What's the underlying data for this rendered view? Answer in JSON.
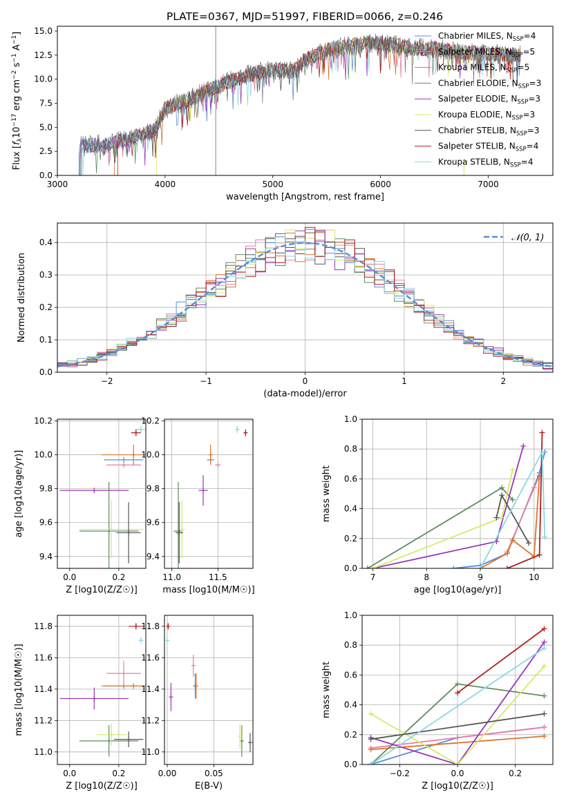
{
  "title": "PLATE=0367, MJD=51997, FIBERID=0066, z=0.246",
  "colors": [
    "#5b8bd6",
    "#e87ca8",
    "#d9742b",
    "#5e8a5e",
    "#9a35b5",
    "#d3ea6a",
    "#555555",
    "#b01c1c",
    "#8ad8e0"
  ],
  "legend": [
    {
      "label": "Chabrier MILES, N",
      "sub": "SSP",
      "tail": "=4"
    },
    {
      "label": "Salpeter MILES, N",
      "sub": "SSP",
      "tail": "=5"
    },
    {
      "label": "Kroupa MILES, N",
      "sub": "SSP",
      "tail": "=5"
    },
    {
      "label": "Chabrier ELODIE, N",
      "sub": "SSP",
      "tail": "=3"
    },
    {
      "label": "Salpeter ELODIE, N",
      "sub": "SSP",
      "tail": "=3"
    },
    {
      "label": "Kroupa ELODIE, N",
      "sub": "SSP",
      "tail": "=3"
    },
    {
      "label": "Chabrier STELIB, N",
      "sub": "SSP",
      "tail": "=3"
    },
    {
      "label": "Salpeter STELIB, N",
      "sub": "SSP",
      "tail": "=4"
    },
    {
      "label": "Kroupa STELIB, N",
      "sub": "SSP",
      "tail": "=4"
    }
  ],
  "chart_data": [
    {
      "id": "spectrum",
      "type": "line",
      "xlabel": "wavelength [Angstrom, rest frame]",
      "ylabel": "Flux [f_λ 10^-17 erg cm^-2 s^-1 A^-1]",
      "xlim": [
        3000,
        7600
      ],
      "ylim": [
        0,
        15.5
      ],
      "xticks": [
        3000,
        4000,
        5000,
        6000,
        7000
      ],
      "yticks": [
        0.0,
        2.5,
        5.0,
        7.5,
        10.0,
        12.5,
        15.0
      ],
      "data_envelope": {
        "x": [
          3200,
          3300,
          3500,
          3700,
          3900,
          4000,
          4200,
          4400,
          4600,
          4800,
          5000,
          5200,
          5300,
          5500,
          5700,
          5900,
          6100,
          6300,
          6500,
          6700,
          6900,
          7100,
          7300
        ],
        "y": [
          3.0,
          3.1,
          3.3,
          4.0,
          4.6,
          7.0,
          7.8,
          8.8,
          9.8,
          10.5,
          11.0,
          10.8,
          12.0,
          13.0,
          13.4,
          13.8,
          13.6,
          13.2,
          13.2,
          12.8,
          12.7,
          12.6,
          12.5
        ]
      },
      "grid": false,
      "legend_placement": "top-right"
    },
    {
      "id": "residuals",
      "type": "histogram",
      "xlabel": "(data-model)/error",
      "ylabel": "Normed distribution",
      "xlim": [
        -2.5,
        2.5
      ],
      "ylim": [
        0,
        0.46
      ],
      "xticks": [
        -2,
        -1,
        0,
        1,
        2
      ],
      "yticks": [
        0.0,
        0.1,
        0.2,
        0.3,
        0.4
      ],
      "reference_curve": "N(0,1)",
      "legend_label": "𝒩(0, 1)",
      "grid": true,
      "legend_placement": "top-right"
    },
    {
      "id": "age_vs_Z",
      "type": "errorbar",
      "xlabel": "Z [log10(Z/Z☉)]",
      "ylabel": "age  [log10(age/yr)]",
      "xlim": [
        -0.05,
        0.31
      ],
      "ylim": [
        9.33,
        10.21
      ],
      "xticks": [
        0.0,
        0.2
      ],
      "yticks": [
        9.4,
        9.6,
        9.8,
        10.0,
        10.2
      ],
      "points": [
        {
          "x": 0.22,
          "y": 9.97,
          "xerr": 0.08,
          "yerr": 0.0,
          "c": 0
        },
        {
          "x": 0.22,
          "y": 9.94,
          "xerr": 0.07,
          "yerr": 0.0,
          "c": 1
        },
        {
          "x": 0.26,
          "y": 10.0,
          "xerr": 0.13,
          "yerr": 0.06,
          "c": 2
        },
        {
          "x": 0.16,
          "y": 9.55,
          "xerr": 0.12,
          "yerr": 0.29,
          "c": 3
        },
        {
          "x": 0.1,
          "y": 9.79,
          "xerr": 0.14,
          "yerr": 0.0,
          "c": 4
        },
        {
          "x": 0.17,
          "y": 9.56,
          "xerr": 0.13,
          "yerr": 0.17,
          "c": 5
        },
        {
          "x": 0.24,
          "y": 9.54,
          "xerr": 0.05,
          "yerr": 0.18,
          "c": 6
        },
        {
          "x": 0.27,
          "y": 10.13,
          "xerr": 0.02,
          "yerr": 0.02,
          "c": 7
        },
        {
          "x": 0.29,
          "y": 10.15,
          "xerr": 0.02,
          "yerr": 0.02,
          "c": 8
        }
      ]
    },
    {
      "id": "age_vs_mass",
      "type": "errorbar",
      "xlabel": "mass [log10(M/M☉)]",
      "ylabel": "",
      "xlim": [
        10.92,
        11.88
      ],
      "ylim": [
        9.33,
        10.21
      ],
      "xticks": [
        11.0,
        11.5
      ],
      "yticks": [
        9.4,
        9.6,
        9.8,
        10.0,
        10.2
      ],
      "points": [
        {
          "x": 11.42,
          "y": 9.97,
          "xerr": 0.04,
          "yerr": 0.0,
          "c": 0
        },
        {
          "x": 11.5,
          "y": 9.94,
          "xerr": 0.03,
          "yerr": 0.0,
          "c": 1
        },
        {
          "x": 11.42,
          "y": 10.0,
          "xerr": 0.0,
          "yerr": 0.06,
          "c": 2
        },
        {
          "x": 11.07,
          "y": 9.55,
          "xerr": 0.05,
          "yerr": 0.29,
          "c": 3
        },
        {
          "x": 11.34,
          "y": 9.79,
          "xerr": 0.05,
          "yerr": 0.09,
          "c": 4
        },
        {
          "x": 11.11,
          "y": 9.56,
          "xerr": 0.04,
          "yerr": 0.17,
          "c": 5
        },
        {
          "x": 11.08,
          "y": 9.54,
          "xerr": 0.04,
          "yerr": 0.18,
          "c": 6
        },
        {
          "x": 11.8,
          "y": 10.13,
          "xerr": 0.02,
          "yerr": 0.02,
          "c": 7
        },
        {
          "x": 11.71,
          "y": 10.15,
          "xerr": 0.02,
          "yerr": 0.02,
          "c": 8
        }
      ]
    },
    {
      "id": "massweight_vs_age",
      "type": "line",
      "xlabel": "age  [log10(age/yr)]",
      "ylabel": "mass weight",
      "xlim": [
        6.8,
        10.35
      ],
      "ylim": [
        0,
        1.0
      ],
      "xticks": [
        7,
        8,
        9,
        10
      ],
      "yticks": [
        0.0,
        0.2,
        0.4,
        0.6,
        0.8,
        1.0
      ],
      "series": [
        {
          "c": 0,
          "x": [
            8.5,
            9.0,
            9.5,
            10.1,
            10.2
          ],
          "y": [
            0.0,
            0.02,
            0.1,
            0.64,
            0.78
          ]
        },
        {
          "c": 1,
          "x": [
            9.5,
            10.0,
            10.1
          ],
          "y": [
            0.11,
            0.54,
            0.62
          ]
        },
        {
          "c": 2,
          "x": [
            9.0,
            9.5,
            9.6,
            10.0,
            10.1
          ],
          "y": [
            0.0,
            0.1,
            0.19,
            0.08,
            0.62
          ]
        },
        {
          "c": 3,
          "x": [
            6.9,
            9.4,
            9.6
          ],
          "y": [
            0.0,
            0.54,
            0.46
          ]
        },
        {
          "c": 4,
          "x": [
            7.0,
            9.3,
            9.8
          ],
          "y": [
            0.0,
            0.18,
            0.82
          ]
        },
        {
          "c": 5,
          "x": [
            7.0,
            9.4,
            9.6
          ],
          "y": [
            0.0,
            0.34,
            0.66
          ]
        },
        {
          "c": 6,
          "x": [
            9.3,
            9.4,
            9.9
          ],
          "y": [
            0.34,
            0.49,
            0.17
          ]
        },
        {
          "c": 7,
          "x": [
            9.5,
            10.1,
            10.15
          ],
          "y": [
            0.0,
            0.09,
            0.91
          ]
        },
        {
          "c": 8,
          "x": [
            9.0,
            10.15,
            10.2
          ],
          "y": [
            0.0,
            0.78,
            0.21
          ]
        }
      ]
    },
    {
      "id": "mass_vs_Z",
      "type": "errorbar",
      "xlabel": "Z [log10(Z/Z☉)]",
      "ylabel": "mass [log10(M/M☉)]",
      "xlim": [
        -0.05,
        0.31
      ],
      "ylim": [
        10.92,
        11.87
      ],
      "xticks": [
        0.0,
        0.2
      ],
      "yticks": [
        11.0,
        11.2,
        11.4,
        11.6,
        11.8
      ],
      "points": [
        {
          "x": 0.22,
          "y": 11.42,
          "xerr": 0.08,
          "yerr": 0.0,
          "c": 0
        },
        {
          "x": 0.22,
          "y": 11.5,
          "xerr": 0.07,
          "yerr": 0.08,
          "c": 1
        },
        {
          "x": 0.26,
          "y": 11.42,
          "xerr": 0.13,
          "yerr": 0.0,
          "c": 2
        },
        {
          "x": 0.16,
          "y": 11.07,
          "xerr": 0.12,
          "yerr": 0.1,
          "c": 3
        },
        {
          "x": 0.1,
          "y": 11.34,
          "xerr": 0.14,
          "yerr": 0.07,
          "c": 4
        },
        {
          "x": 0.17,
          "y": 11.11,
          "xerr": 0.06,
          "yerr": 0.07,
          "c": 5
        },
        {
          "x": 0.24,
          "y": 11.08,
          "xerr": 0.06,
          "yerr": 0.05,
          "c": 6
        },
        {
          "x": 0.27,
          "y": 11.8,
          "xerr": 0.03,
          "yerr": 0.02,
          "c": 7
        },
        {
          "x": 0.29,
          "y": 11.71,
          "xerr": 0.01,
          "yerr": 0.02,
          "c": 8
        }
      ]
    },
    {
      "id": "mass_vs_EBV",
      "type": "errorbar",
      "xlabel": "E(B-V)",
      "ylabel": "",
      "xlim": [
        -0.003,
        0.092
      ],
      "ylim": [
        10.92,
        11.87
      ],
      "xticks": [
        0.0,
        0.05
      ],
      "yticks": [
        11.0,
        11.2,
        11.4,
        11.6,
        11.8
      ],
      "points": [
        {
          "x": 0.03,
          "y": 11.42,
          "xerr": 0.0,
          "yerr": 0.08,
          "c": 0
        },
        {
          "x": 0.028,
          "y": 11.55,
          "xerr": 0.0,
          "yerr": 0.07,
          "c": 1
        },
        {
          "x": 0.031,
          "y": 11.42,
          "xerr": 0.0,
          "yerr": 0.08,
          "c": 2
        },
        {
          "x": 0.08,
          "y": 11.07,
          "xerr": 0.0,
          "yerr": 0.1,
          "c": 3
        },
        {
          "x": 0.004,
          "y": 11.35,
          "xerr": 0.0,
          "yerr": 0.09,
          "c": 4
        },
        {
          "x": 0.078,
          "y": 11.1,
          "xerr": 0.0,
          "yerr": 0.08,
          "c": 5
        },
        {
          "x": 0.089,
          "y": 11.06,
          "xerr": 0.0,
          "yerr": 0.06,
          "c": 6
        },
        {
          "x": 0.001,
          "y": 11.8,
          "xerr": 0.0,
          "yerr": 0.02,
          "c": 7
        },
        {
          "x": 0.0,
          "y": 11.71,
          "xerr": 0.0,
          "yerr": 0.01,
          "c": 8
        }
      ]
    },
    {
      "id": "massweight_vs_Z",
      "type": "line",
      "xlabel": "Z [log10(Z/Z☉)]",
      "ylabel": "mass weight",
      "xlim": [
        -0.33,
        0.33
      ],
      "ylim": [
        0,
        1.0
      ],
      "xticks": [
        -0.2,
        0.0,
        0.2
      ],
      "yticks": [
        0.0,
        0.2,
        0.4,
        0.6,
        0.8,
        1.0
      ],
      "series": [
        {
          "c": 0,
          "x": [
            -0.3,
            0.0,
            0.3
          ],
          "y": [
            0.0,
            0.18,
            0.25
          ]
        },
        {
          "c": 1,
          "x": [
            -0.3,
            0.3
          ],
          "y": [
            0.11,
            0.25
          ]
        },
        {
          "c": 2,
          "x": [
            -0.3,
            0.3
          ],
          "y": [
            0.1,
            0.19
          ]
        },
        {
          "c": 3,
          "x": [
            -0.3,
            0.0,
            0.3
          ],
          "y": [
            0.0,
            0.54,
            0.46
          ]
        },
        {
          "c": 4,
          "x": [
            -0.3,
            0.0,
            0.3
          ],
          "y": [
            0.18,
            0.0,
            0.82
          ]
        },
        {
          "c": 5,
          "x": [
            -0.3,
            0.0,
            0.3
          ],
          "y": [
            0.34,
            0.0,
            0.66
          ]
        },
        {
          "c": 6,
          "x": [
            -0.3,
            0.3
          ],
          "y": [
            0.17,
            0.34
          ]
        },
        {
          "c": 7,
          "x": [
            0.0,
            0.3
          ],
          "y": [
            0.48,
            0.91
          ]
        },
        {
          "c": 8,
          "x": [
            -0.3,
            0.3
          ],
          "y": [
            0.0,
            0.78
          ]
        }
      ]
    }
  ]
}
